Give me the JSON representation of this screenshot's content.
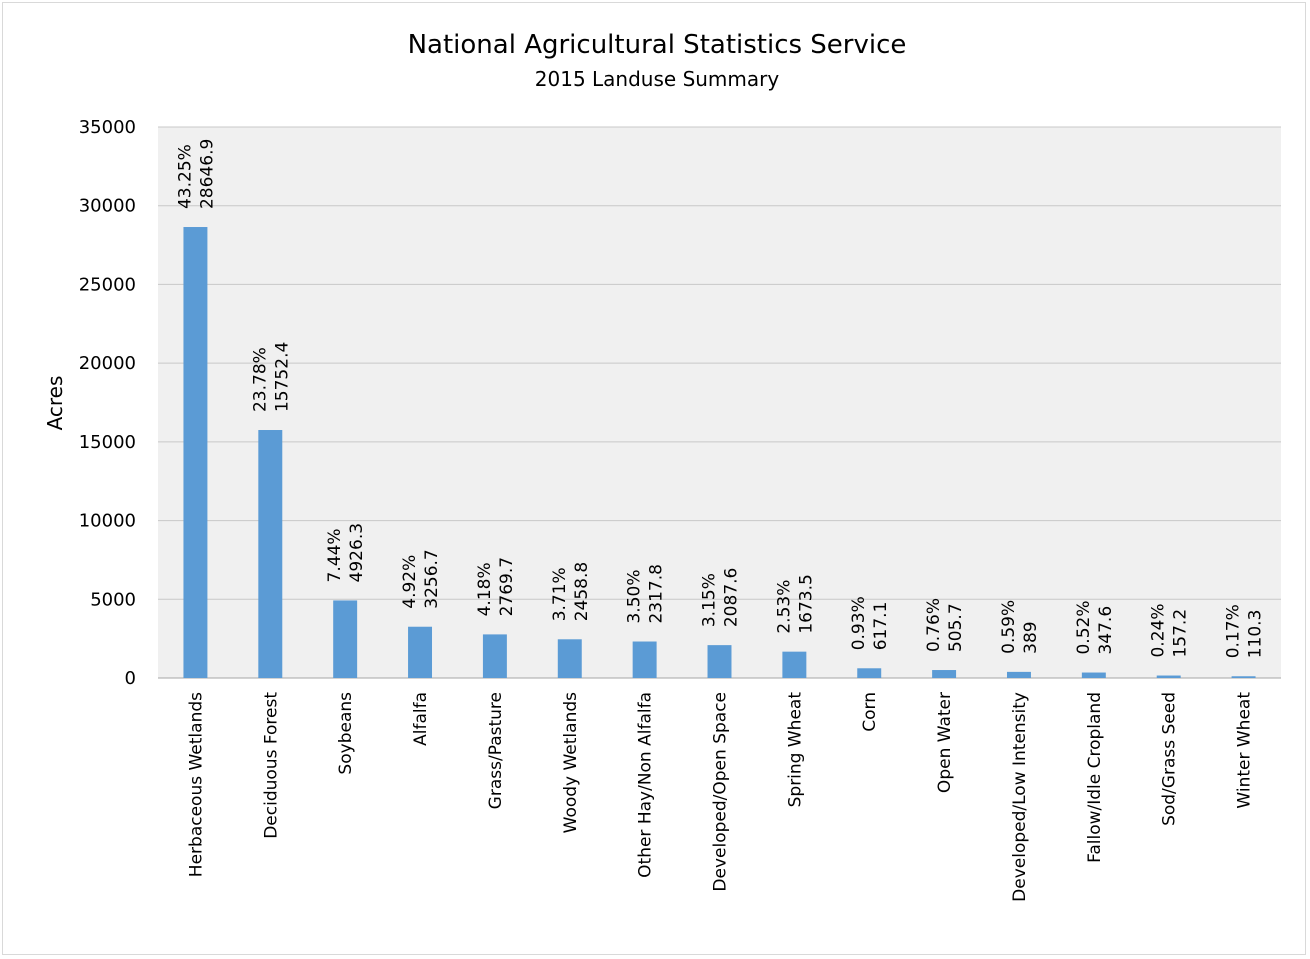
{
  "chart_data": {
    "type": "bar",
    "title": "National Agricultural Statistics Service",
    "subtitle": "2015 Landuse Summary",
    "xlabel": "",
    "ylabel": "Acres",
    "ylim": [
      0,
      35000
    ],
    "yticks": [
      0,
      5000,
      10000,
      15000,
      20000,
      25000,
      30000,
      35000
    ],
    "grid": true,
    "bar_color": "#5b9bd5",
    "plot_background": "#f0f0f0",
    "categories": [
      "Herbaceous Wetlands",
      "Deciduous Forest",
      "Soybeans",
      "Alfalfa",
      "Grass/Pasture",
      "Woody Wetlands",
      "Other Hay/Non Alfalfa",
      "Developed/Open Space",
      "Spring Wheat",
      "Corn",
      "Open Water",
      "Developed/Low Intensity",
      "Fallow/Idle Cropland",
      "Sod/Grass Seed",
      "Winter Wheat"
    ],
    "values": [
      28646.9,
      15752.4,
      4926.3,
      3256.7,
      2769.7,
      2458.8,
      2317.8,
      2087.6,
      1673.5,
      617.1,
      505.7,
      389,
      347.6,
      157.2,
      110.3
    ],
    "percent_labels": [
      "43.25%",
      "23.78%",
      "7.44%",
      "4.92%",
      "4.18%",
      "3.71%",
      "3.50%",
      "3.15%",
      "2.53%",
      "0.93%",
      "0.76%",
      "0.59%",
      "0.52%",
      "0.24%",
      "0.17%"
    ],
    "value_labels": [
      "28646.9",
      "15752.4",
      "4926.3",
      "3256.7",
      "2769.7",
      "2458.8",
      "2317.8",
      "2087.6",
      "1673.5",
      "617.1",
      "505.7",
      "389",
      "347.6",
      "157.2",
      "110.3"
    ]
  }
}
